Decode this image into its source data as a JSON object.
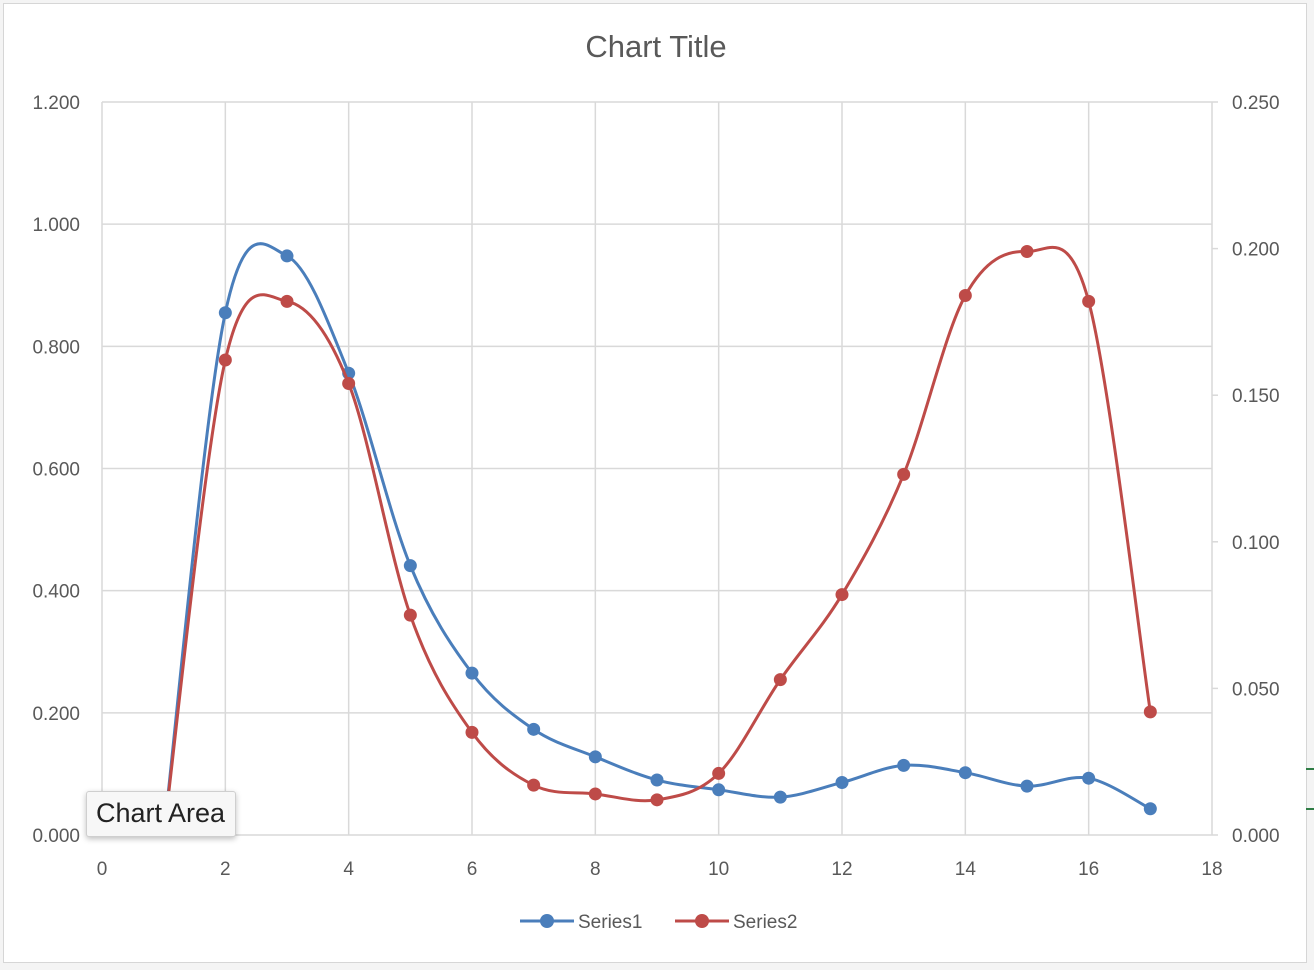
{
  "colors": {
    "series1": "#4a7ebb",
    "series2": "#be4b48",
    "grid": "#d9d9d9",
    "axis_text": "#595959",
    "title_text": "#595959"
  },
  "tooltip": {
    "label": "Chart Area"
  },
  "chart_data": {
    "type": "line",
    "title": "Chart Title",
    "smooth": true,
    "markers": true,
    "grid": true,
    "legend_position": "bottom",
    "x_ticks": [
      "0",
      "2",
      "4",
      "6",
      "8",
      "10",
      "12",
      "14",
      "16",
      "18"
    ],
    "xlim": [
      0,
      18
    ],
    "y_ticks": [
      "0.000",
      "0.200",
      "0.400",
      "0.600",
      "0.800",
      "1.000",
      "1.200"
    ],
    "ylim": [
      0,
      1.2
    ],
    "y2_ticks": [
      "0.000",
      "0.050",
      "0.100",
      "0.150",
      "0.200",
      "0.250"
    ],
    "y2lim": [
      0,
      0.25
    ],
    "series": [
      {
        "name": "Series1",
        "axis": "primary",
        "x": [
          1,
          2,
          3,
          4,
          5,
          6,
          7,
          8,
          9,
          10,
          11,
          12,
          13,
          14,
          15,
          16,
          17
        ],
        "y": [
          0.0,
          0.855,
          0.948,
          0.756,
          0.441,
          0.265,
          0.173,
          0.128,
          0.09,
          0.074,
          0.062,
          0.086,
          0.114,
          0.102,
          0.08,
          0.093,
          0.043
        ]
      },
      {
        "name": "Series2",
        "axis": "secondary",
        "x": [
          1,
          2,
          3,
          4,
          5,
          6,
          7,
          8,
          9,
          10,
          11,
          12,
          13,
          14,
          15,
          16,
          17
        ],
        "y": [
          0.0,
          0.162,
          0.182,
          0.154,
          0.075,
          0.035,
          0.017,
          0.014,
          0.012,
          0.021,
          0.053,
          0.082,
          0.123,
          0.184,
          0.199,
          0.182,
          0.042
        ]
      }
    ]
  }
}
